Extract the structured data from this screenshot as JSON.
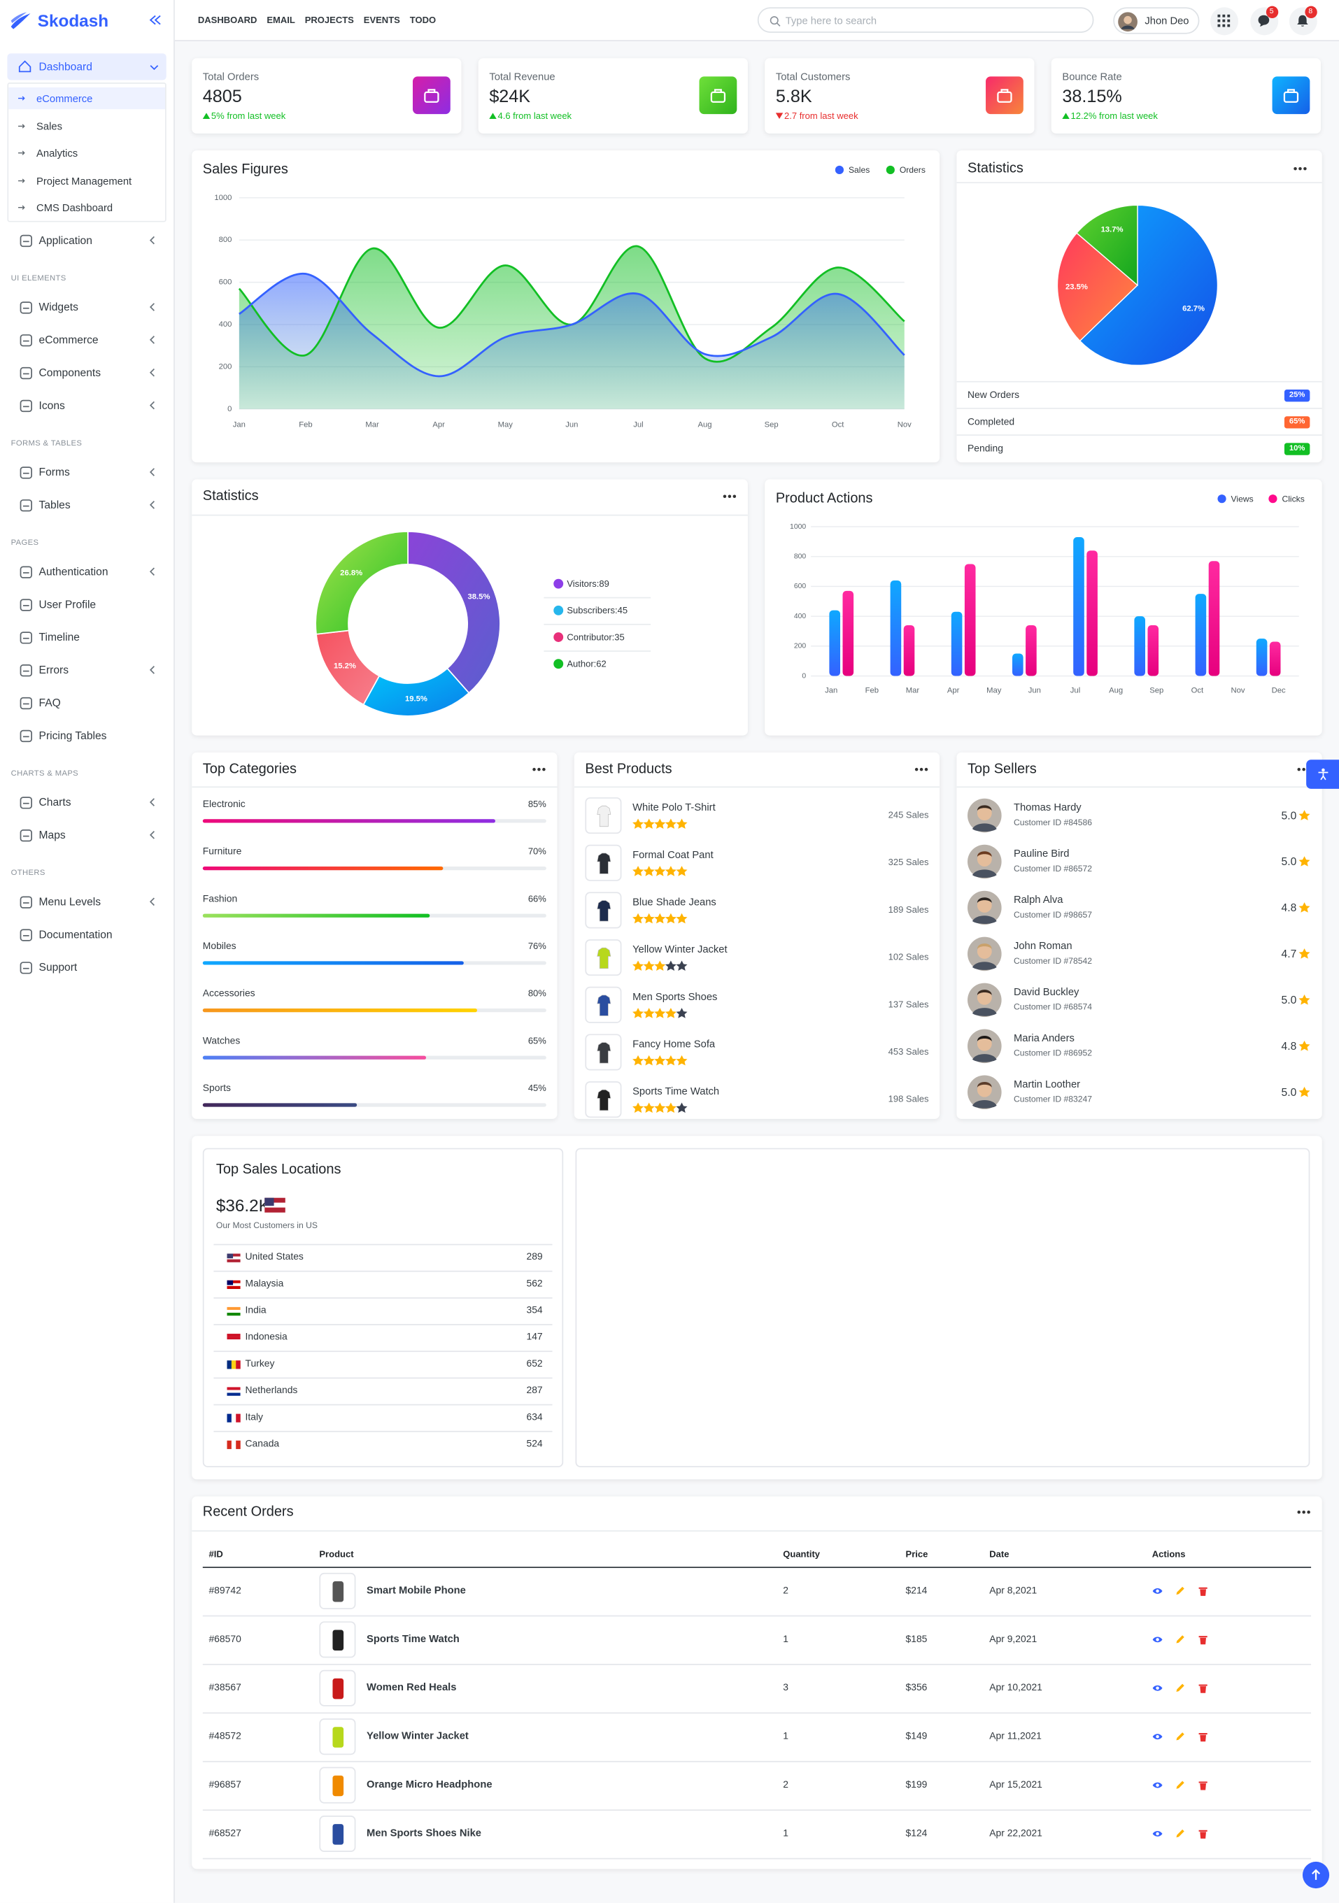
{
  "sidebar": {
    "brand": "Skodash",
    "dashboard": {
      "label": "Dashboard",
      "children": [
        "eCommerce",
        "Sales",
        "Analytics",
        "Project Management",
        "CMS Dashboard"
      ]
    },
    "application": {
      "label": "Application",
      "submenu": true
    },
    "sections": [
      {
        "heading": "UI ELEMENTS",
        "items": [
          {
            "label": "Widgets",
            "submenu": true
          },
          {
            "label": "eCommerce",
            "submenu": true
          },
          {
            "label": "Components",
            "submenu": true
          },
          {
            "label": "Icons",
            "submenu": true
          }
        ]
      },
      {
        "heading": "FORMS & TABLES",
        "items": [
          {
            "label": "Forms",
            "submenu": true
          },
          {
            "label": "Tables",
            "submenu": true
          }
        ]
      },
      {
        "heading": "PAGES",
        "items": [
          {
            "label": "Authentication",
            "submenu": true
          },
          {
            "label": "User Profile",
            "submenu": false
          },
          {
            "label": "Timeline",
            "submenu": false
          },
          {
            "label": "Errors",
            "submenu": true
          },
          {
            "label": "FAQ",
            "submenu": false
          },
          {
            "label": "Pricing Tables",
            "submenu": false
          }
        ]
      },
      {
        "heading": "CHARTS & MAPS",
        "items": [
          {
            "label": "Charts",
            "submenu": true
          },
          {
            "label": "Maps",
            "submenu": true
          }
        ]
      },
      {
        "heading": "OTHERS",
        "items": [
          {
            "label": "Menu Levels",
            "submenu": true
          },
          {
            "label": "Documentation",
            "submenu": false
          },
          {
            "label": "Support",
            "submenu": false
          }
        ]
      }
    ]
  },
  "topbar": {
    "links": [
      "DASHBOARD",
      "EMAIL",
      "PROJECTS",
      "EVENTS",
      "TODO"
    ],
    "search_placeholder": "Type here to search",
    "user": "Jhon Deo",
    "message_count": 5,
    "notification_count": 8
  },
  "stats": [
    {
      "title": "Total Orders",
      "value": "4805",
      "change": "5% from last week",
      "trend": "up",
      "icon_gradient": [
        "#d51ea9",
        "#8e2de2"
      ]
    },
    {
      "title": "Total Revenue",
      "value": "$24K",
      "change": "4.6 from last week",
      "trend": "up",
      "icon_gradient": [
        "#6fe03a",
        "#2fb31c"
      ]
    },
    {
      "title": "Total Customers",
      "value": "5.8K",
      "change": "2.7 from last week",
      "trend": "down",
      "icon_gradient": [
        "#f72a6a",
        "#f7863b"
      ]
    },
    {
      "title": "Bounce Rate",
      "value": "38.15%",
      "change": "12.2% from last week",
      "trend": "up",
      "icon_gradient": [
        "#0fb3ff",
        "#1560e8"
      ]
    }
  ],
  "sales_figures": {
    "type": "area",
    "title": "Sales Figures",
    "categories": [
      "Jan",
      "Feb",
      "Mar",
      "Apr",
      "May",
      "Jun",
      "Jul",
      "Aug",
      "Sep",
      "Oct",
      "Nov"
    ],
    "series": [
      {
        "name": "Sales",
        "color": "#3461ff",
        "values": [
          450,
          640,
          355,
          155,
          340,
          400,
          545,
          260,
          340,
          545,
          255
        ]
      },
      {
        "name": "Orders",
        "color": "#12bf24",
        "values": [
          570,
          255,
          760,
          385,
          680,
          400,
          770,
          240,
          385,
          670,
          415
        ]
      }
    ],
    "ylim": [
      0,
      1000
    ],
    "yticks": [
      0,
      200,
      400,
      600,
      800,
      1000
    ],
    "grid": true,
    "legend": "top-right"
  },
  "statistics_pie": {
    "type": "pie",
    "title": "Statistics",
    "values": [
      62.7,
      23.5,
      13.7
    ],
    "value_labels": [
      "62.7%",
      "23.5%",
      "13.7%"
    ],
    "colors": [
      [
        "#0ea5ff",
        "#1450e8"
      ],
      [
        "#ff3a5c",
        "#ff8a3d"
      ],
      [
        "#5fd12e",
        "#12a51e"
      ]
    ],
    "breakdown": [
      {
        "label": "New Orders",
        "badge": "25%",
        "color": "#3461ff"
      },
      {
        "label": "Completed",
        "badge": "65%",
        "color": "#ff6632"
      },
      {
        "label": "Pending",
        "badge": "10%",
        "color": "#12bf24"
      }
    ]
  },
  "statistics_donut": {
    "type": "donut",
    "title": "Statistics",
    "values": [
      38.5,
      19.5,
      15.2,
      26.8
    ],
    "value_labels": [
      "38.5%",
      "19.5%",
      "15.2%",
      "26.8%"
    ],
    "colors": [
      [
        "#8a44d8",
        "#5a5fcf"
      ],
      [
        "#00c6fb",
        "#0a7fea"
      ],
      [
        "#f5515f",
        "#f7808d"
      ],
      [
        "#a5e34b",
        "#22bf24"
      ]
    ],
    "legend": [
      {
        "label": "Visitors:89",
        "color": "#8d3ee8"
      },
      {
        "label": "Subscribers:45",
        "color": "#26b6ec"
      },
      {
        "label": "Contributor:35",
        "color": "#e8307a"
      },
      {
        "label": "Author:62",
        "color": "#12bf24"
      }
    ]
  },
  "product_actions": {
    "type": "bar",
    "title": "Product Actions",
    "x_labels": [
      "Jan",
      "Feb",
      "Mar",
      "Apr",
      "May",
      "Jun",
      "Jul",
      "Aug",
      "Sep",
      "Oct",
      "Nov",
      "Dec"
    ],
    "series": [
      {
        "name": "Views",
        "color": "#3461ff",
        "values": [
          440,
          640,
          430,
          150,
          930,
          400,
          550,
          250
        ]
      },
      {
        "name": "Clicks",
        "color": "#ff0a8c",
        "values": [
          570,
          340,
          750,
          340,
          840,
          340,
          770,
          230
        ]
      }
    ],
    "ylim": [
      0,
      1000
    ],
    "yticks": [
      0,
      200,
      400,
      600,
      800,
      1000
    ],
    "grid": true,
    "legend": "top-right"
  },
  "top_categories": {
    "title": "Top Categories",
    "items": [
      {
        "name": "Electronic",
        "value": 85,
        "label": "85%",
        "gradient": [
          "#ee0979",
          "#8e2de2"
        ]
      },
      {
        "name": "Furniture",
        "value": 70,
        "label": "70%",
        "gradient": [
          "#ee0979",
          "#ff6a00"
        ]
      },
      {
        "name": "Fashion",
        "value": 66,
        "label": "66%",
        "gradient": [
          "#9be15d",
          "#12bf24"
        ]
      },
      {
        "name": "Mobiles",
        "value": 76,
        "label": "76%",
        "gradient": [
          "#0fa8ff",
          "#1560e8"
        ]
      },
      {
        "name": "Accessories",
        "value": 80,
        "label": "80%",
        "gradient": [
          "#f7971e",
          "#ffd200"
        ]
      },
      {
        "name": "Watches",
        "value": 65,
        "label": "65%",
        "gradient": [
          "#4e80f5",
          "#f64e9e"
        ]
      },
      {
        "name": "Sports",
        "value": 45,
        "label": "45%",
        "gradient": [
          "#42275a",
          "#3a4a82"
        ]
      }
    ]
  },
  "best_products": {
    "title": "Best Products",
    "items": [
      {
        "name": "White Polo T-Shirt",
        "rating": 5,
        "sales": "245 Sales"
      },
      {
        "name": "Formal Coat Pant",
        "rating": 5,
        "sales": "325 Sales"
      },
      {
        "name": "Blue Shade Jeans",
        "rating": 5,
        "sales": "189 Sales"
      },
      {
        "name": "Yellow Winter Jacket",
        "rating": 3,
        "sales": "102 Sales"
      },
      {
        "name": "Men Sports Shoes",
        "rating": 4,
        "sales": "137 Sales"
      },
      {
        "name": "Fancy Home Sofa",
        "rating": 5,
        "sales": "453 Sales"
      },
      {
        "name": "Sports Time Watch",
        "rating": 4,
        "sales": "198 Sales"
      }
    ]
  },
  "top_sellers": {
    "title": "Top Sellers",
    "items": [
      {
        "name": "Thomas Hardy",
        "customer_id": "Customer ID #84586",
        "rating": "5.0"
      },
      {
        "name": "Pauline Bird",
        "customer_id": "Customer ID #86572",
        "rating": "5.0"
      },
      {
        "name": "Ralph Alva",
        "customer_id": "Customer ID #98657",
        "rating": "4.8"
      },
      {
        "name": "John Roman",
        "customer_id": "Customer ID #78542",
        "rating": "4.7"
      },
      {
        "name": "David Buckley",
        "customer_id": "Customer ID #68574",
        "rating": "5.0"
      },
      {
        "name": "Maria Anders",
        "customer_id": "Customer ID #86952",
        "rating": "4.8"
      },
      {
        "name": "Martin Loother",
        "customer_id": "Customer ID #83247",
        "rating": "5.0"
      }
    ]
  },
  "top_locations": {
    "title": "Top Sales Locations",
    "total": "$36.2K",
    "subtitle": "Our Most Customers in US",
    "rows": [
      {
        "country": "United States",
        "count": 289
      },
      {
        "country": "Malaysia",
        "count": 562
      },
      {
        "country": "India",
        "count": 354
      },
      {
        "country": "Indonesia",
        "count": 147
      },
      {
        "country": "Turkey",
        "count": 652
      },
      {
        "country": "Netherlands",
        "count": 287
      },
      {
        "country": "Italy",
        "count": 634
      },
      {
        "country": "Canada",
        "count": 524
      }
    ]
  },
  "recent_orders": {
    "title": "Recent Orders",
    "columns": [
      "#ID",
      "Product",
      "Quantity",
      "Price",
      "Date",
      "Actions"
    ],
    "rows": [
      [
        "#89742",
        "Smart Mobile Phone",
        2,
        "$214",
        "Apr 8,2021"
      ],
      [
        "#68570",
        "Sports Time Watch",
        1,
        "$185",
        "Apr 9,2021"
      ],
      [
        "#38567",
        "Women Red Heals",
        3,
        "$356",
        "Apr 10,2021"
      ],
      [
        "#48572",
        "Yellow Winter Jacket",
        1,
        "$149",
        "Apr 11,2021"
      ],
      [
        "#96857",
        "Orange Micro Headphone",
        2,
        "$199",
        "Apr 15,2021"
      ],
      [
        "#68527",
        "Men Sports Shoes Nike",
        1,
        "$124",
        "Apr 22,2021"
      ]
    ]
  }
}
